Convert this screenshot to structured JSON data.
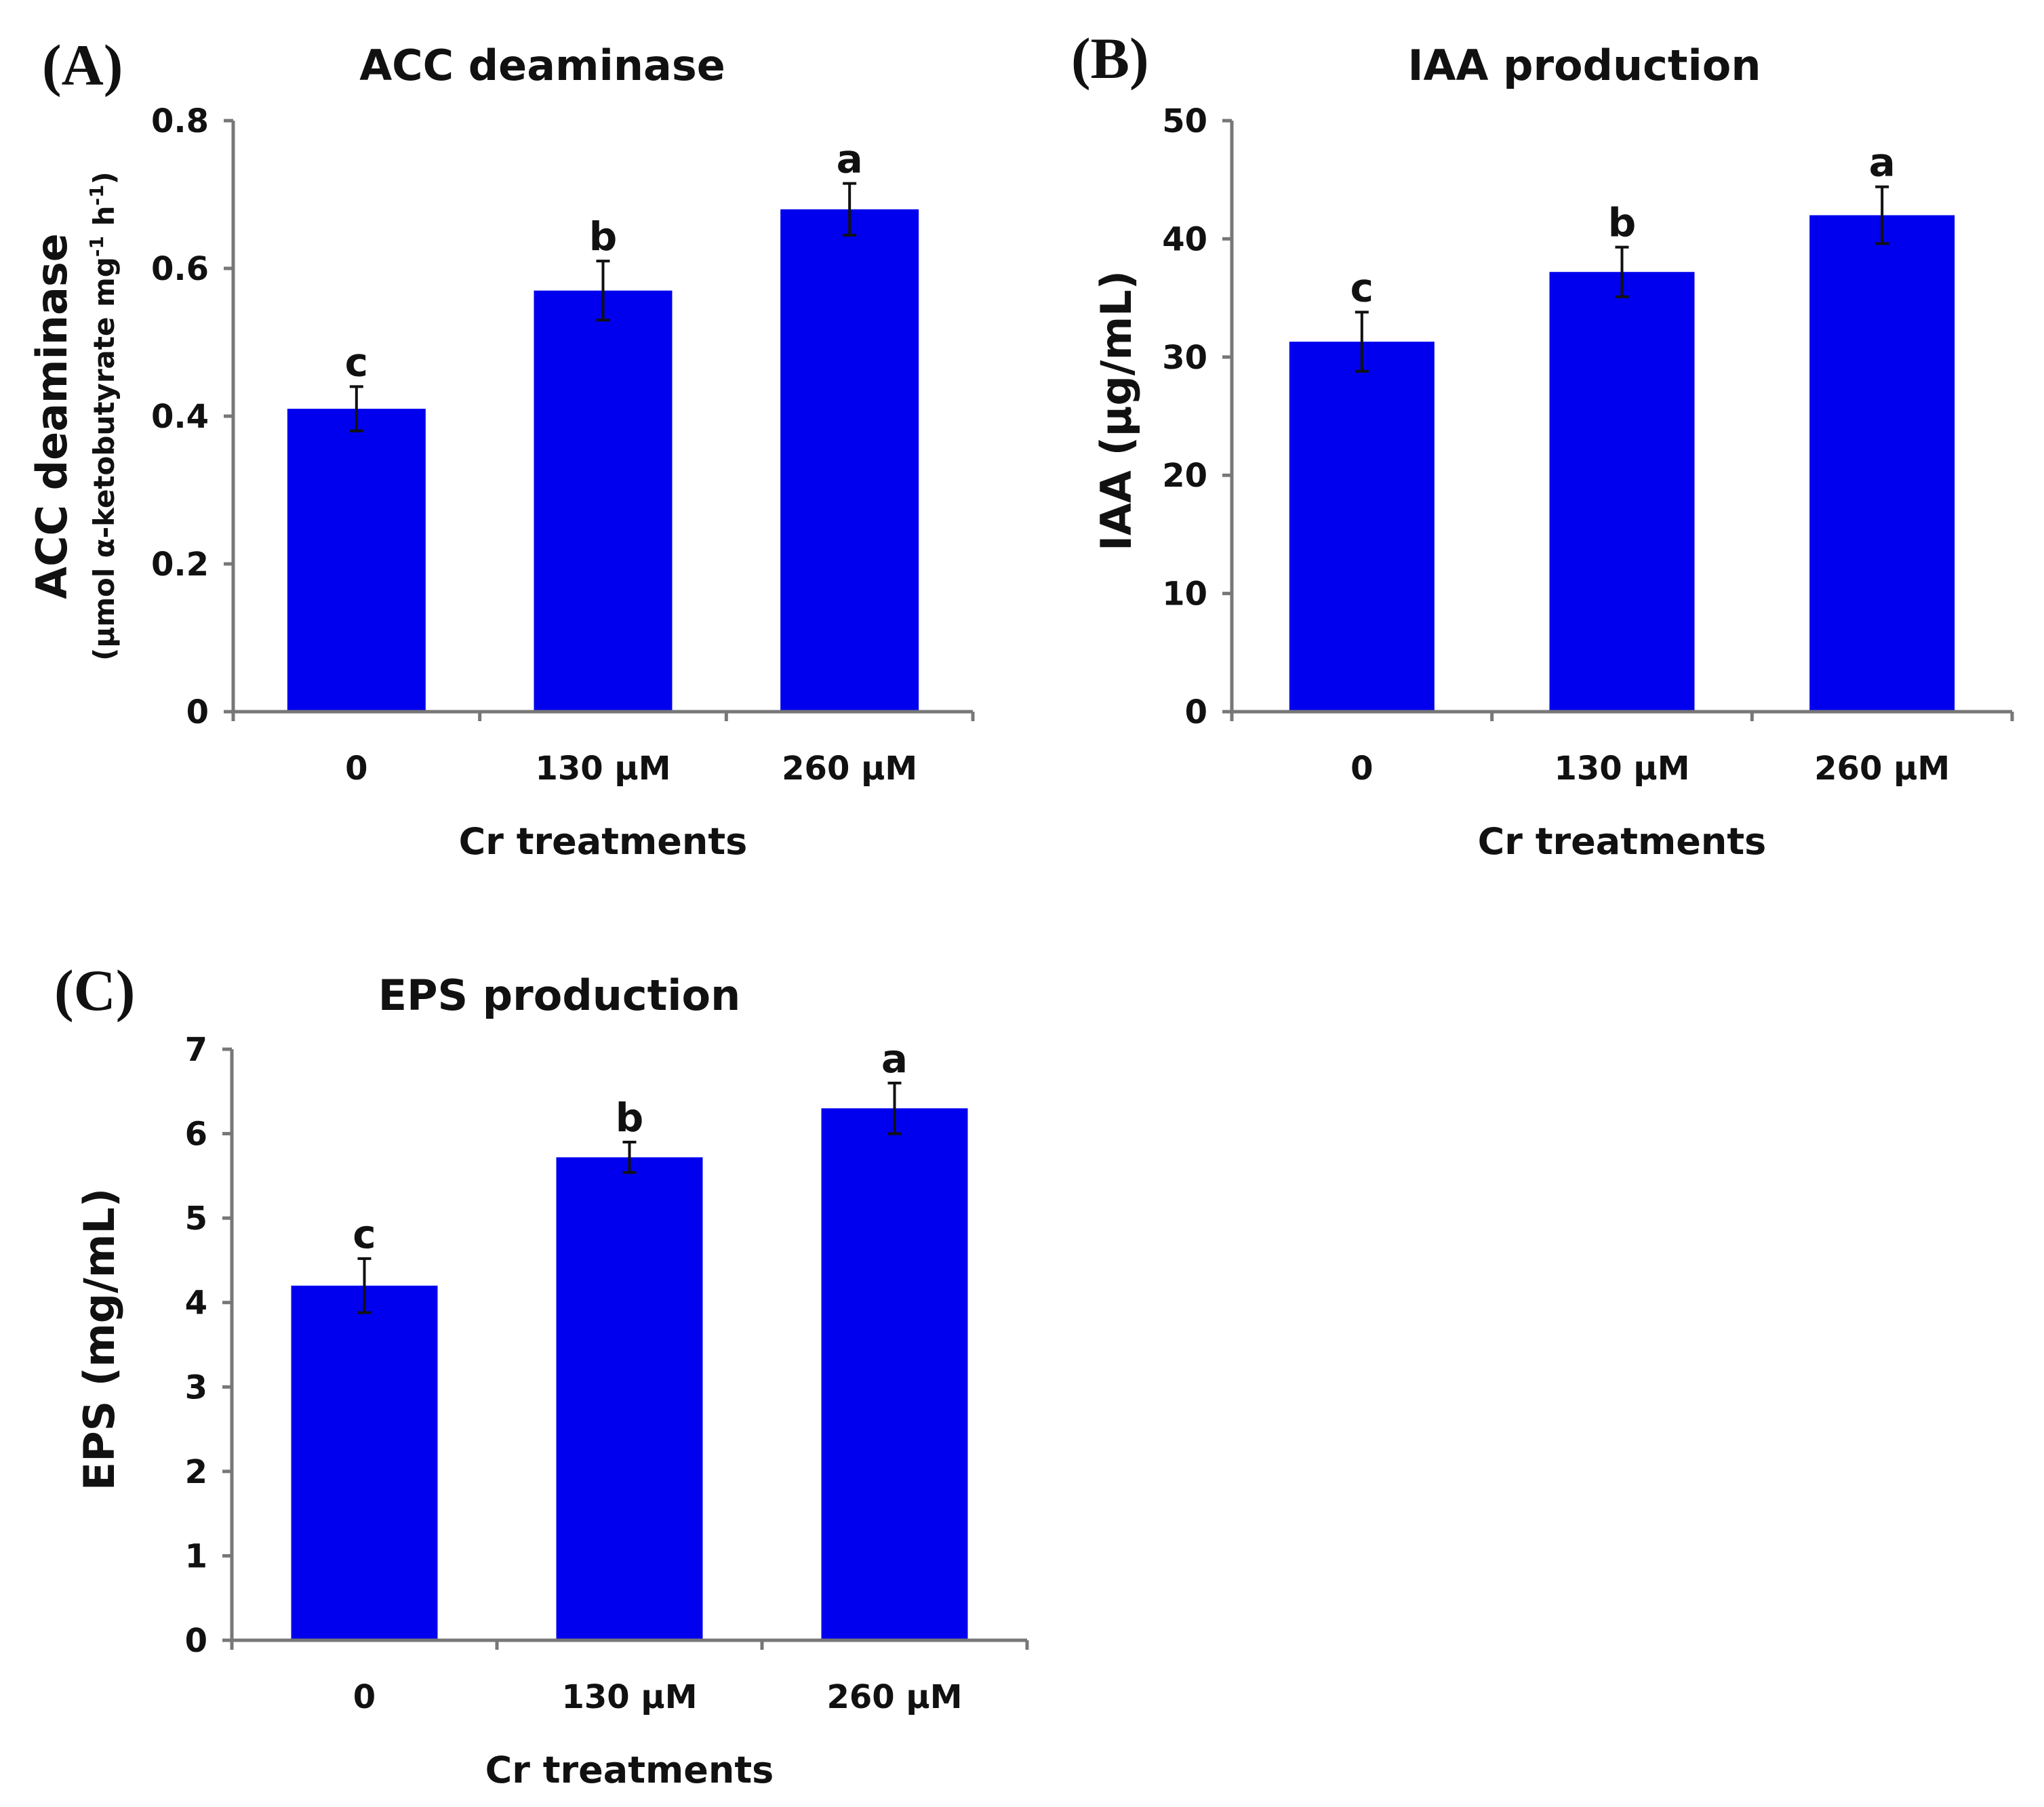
{
  "chart_data": [
    {
      "type": "bar",
      "panel": "(A)",
      "title": "ACC deaminase",
      "ylabel_main": "ACC deaminase",
      "ylabel_sub": "(µmol α-ketobutyrate mg",
      "ylabel_sub_sup1": "-1",
      "ylabel_sub_mid": " h",
      "ylabel_sub_sup2": "-1",
      "ylabel_sub_end": ")",
      "xlabel": "Cr treatments",
      "categories": [
        "0",
        "130 µM",
        "260 µM"
      ],
      "values": [
        0.41,
        0.57,
        0.68
      ],
      "errors": [
        0.03,
        0.04,
        0.035
      ],
      "significance": [
        "c",
        "b",
        "a"
      ],
      "ylim": [
        0,
        0.8
      ],
      "yticks": [
        0,
        0.2,
        0.4,
        0.6,
        0.8
      ],
      "ytick_labels": [
        "0",
        "0.2",
        "0.4",
        "0.6",
        "0.8"
      ],
      "bar_color": "#0000ee"
    },
    {
      "type": "bar",
      "panel": "(B)",
      "title": "IAA production",
      "ylabel_main": "IAA (µg/mL)",
      "xlabel": "Cr treatments",
      "categories": [
        "0",
        "130 µM",
        "260 µM"
      ],
      "values": [
        31.3,
        37.2,
        42.0
      ],
      "errors": [
        2.5,
        2.1,
        2.4
      ],
      "significance": [
        "c",
        "b",
        "a"
      ],
      "ylim": [
        0,
        50
      ],
      "yticks": [
        0,
        10,
        20,
        30,
        40,
        50
      ],
      "ytick_labels": [
        "0",
        "10",
        "20",
        "30",
        "40",
        "50"
      ],
      "bar_color": "#0000ee"
    },
    {
      "type": "bar",
      "panel": "(C)",
      "title": "EPS production",
      "ylabel_main": "EPS (mg/mL)",
      "xlabel": "Cr treatments",
      "categories": [
        "0",
        "130 µM",
        "260 µM"
      ],
      "values": [
        4.2,
        5.72,
        6.3
      ],
      "errors": [
        0.32,
        0.18,
        0.3
      ],
      "significance": [
        "c",
        "b",
        "a"
      ],
      "ylim": [
        0,
        7
      ],
      "yticks": [
        0,
        1,
        2,
        3,
        4,
        5,
        6,
        7
      ],
      "ytick_labels": [
        "0",
        "1",
        "2",
        "3",
        "4",
        "5",
        "6",
        "7"
      ],
      "bar_color": "#0000ee"
    }
  ]
}
